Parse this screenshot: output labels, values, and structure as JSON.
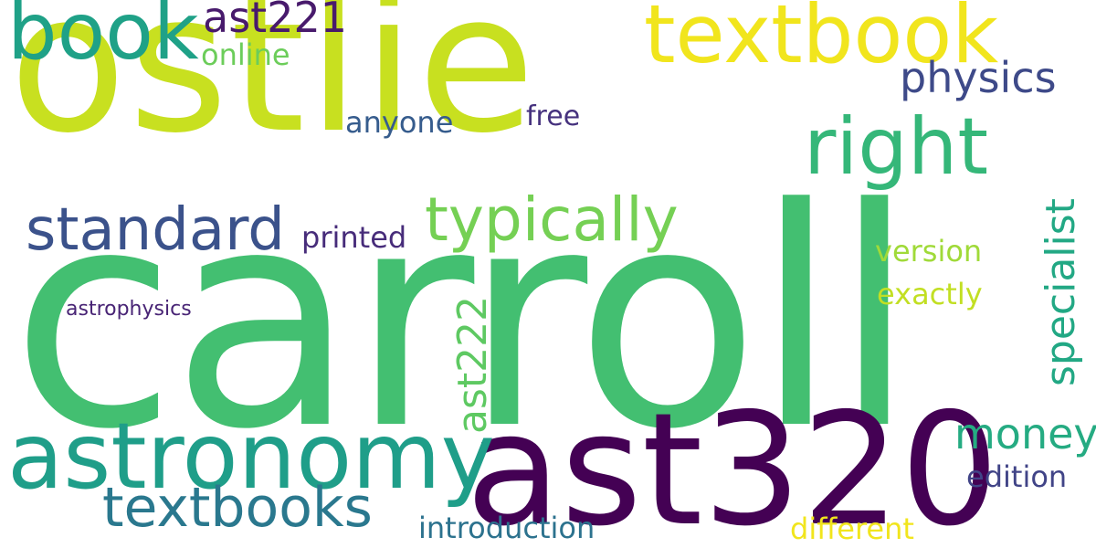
{
  "background": "#ffffff",
  "words": [
    {
      "id": "ostlie",
      "text": "ostlie",
      "color": "#c8e020",
      "orientation": "horizontal"
    },
    {
      "id": "carroll",
      "text": "carroll",
      "color": "#43bf71",
      "orientation": "horizontal"
    },
    {
      "id": "ast320",
      "text": "ast320",
      "color": "#440154",
      "orientation": "horizontal"
    },
    {
      "id": "astronomy",
      "text": "astronomy",
      "color": "#1f9e89",
      "orientation": "horizontal"
    },
    {
      "id": "book",
      "text": "book",
      "color": "#1fa187",
      "orientation": "horizontal"
    },
    {
      "id": "textbook",
      "text": "textbook",
      "color": "#f1e51d",
      "orientation": "horizontal"
    },
    {
      "id": "right",
      "text": "right",
      "color": "#35b779",
      "orientation": "horizontal"
    },
    {
      "id": "typically",
      "text": "typically",
      "color": "#75d054",
      "orientation": "horizontal"
    },
    {
      "id": "standard",
      "text": "standard",
      "color": "#3b528b",
      "orientation": "horizontal"
    },
    {
      "id": "textbooks",
      "text": "textbooks",
      "color": "#2a788e",
      "orientation": "horizontal"
    },
    {
      "id": "ast221",
      "text": "ast221",
      "color": "#481a6c",
      "orientation": "horizontal"
    },
    {
      "id": "physics",
      "text": "physics",
      "color": "#3e4a89",
      "orientation": "horizontal"
    },
    {
      "id": "money",
      "text": "money",
      "color": "#25ab82",
      "orientation": "horizontal"
    },
    {
      "id": "specialist",
      "text": "specialist",
      "color": "#22a884",
      "orientation": "vertical"
    },
    {
      "id": "ast222",
      "text": "ast222",
      "color": "#5ec962",
      "orientation": "vertical"
    },
    {
      "id": "anyone",
      "text": "anyone",
      "color": "#365c8d",
      "orientation": "horizontal"
    },
    {
      "id": "free",
      "text": "free",
      "color": "#46327e",
      "orientation": "horizontal"
    },
    {
      "id": "printed",
      "text": "printed",
      "color": "#472c7a",
      "orientation": "horizontal"
    },
    {
      "id": "online",
      "text": "online",
      "color": "#6ccd5a",
      "orientation": "horizontal"
    },
    {
      "id": "version",
      "text": "version",
      "color": "#a0da39",
      "orientation": "horizontal"
    },
    {
      "id": "exactly",
      "text": "exactly",
      "color": "#c2df23",
      "orientation": "horizontal"
    },
    {
      "id": "edition",
      "text": "edition",
      "color": "#414487",
      "orientation": "horizontal"
    },
    {
      "id": "introduction",
      "text": "introduction",
      "color": "#2c728e",
      "orientation": "horizontal"
    },
    {
      "id": "different",
      "text": "different",
      "color": "#f1e51d",
      "orientation": "horizontal"
    },
    {
      "id": "astrophysics",
      "text": "astrophysics",
      "color": "#482475",
      "orientation": "horizontal"
    }
  ]
}
